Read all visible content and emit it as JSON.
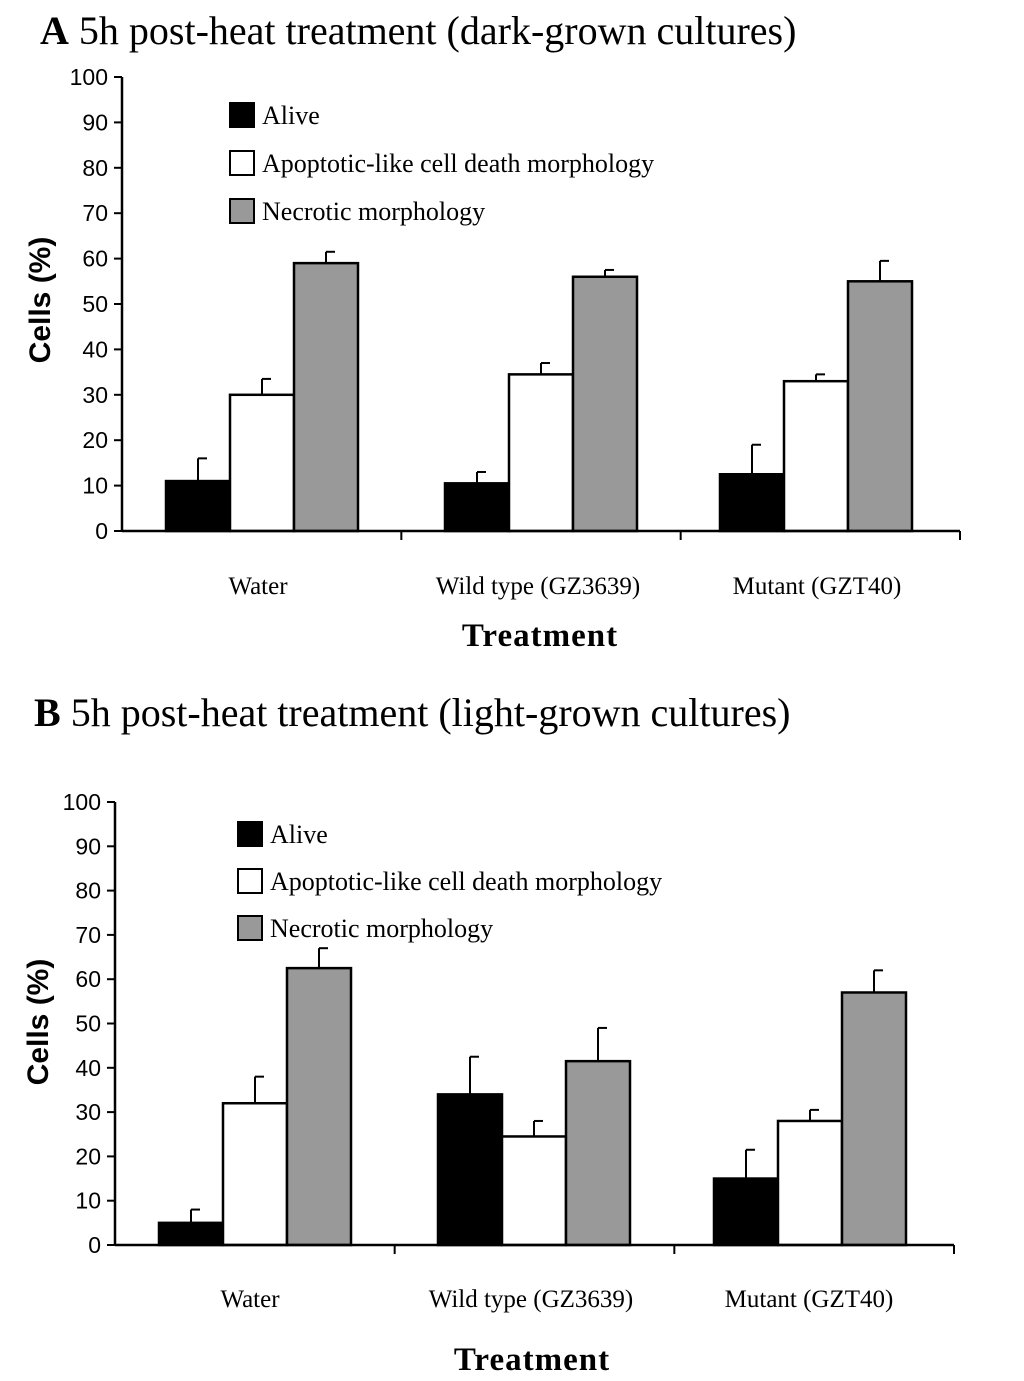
{
  "chart_data": [
    {
      "type": "bar",
      "panel": "A",
      "title": "5h post-heat treatment (dark-grown cultures)",
      "xlabel": "Treatment",
      "ylabel": "Cells (%)",
      "ylim": [
        0,
        100
      ],
      "yticks": [
        "0",
        "10",
        "20",
        "30",
        "40",
        "50",
        "60",
        "70",
        "80",
        "90",
        "100"
      ],
      "categories": [
        "Water",
        "Wild type (GZ3639)",
        "Mutant (GZT40)"
      ],
      "series": [
        {
          "name": "Alive",
          "color": "#000000",
          "values": [
            11,
            10.5,
            12.5
          ],
          "errors": [
            5,
            2.5,
            6.5
          ]
        },
        {
          "name": "Apoptotic-like cell death morphology",
          "color": "#ffffff",
          "values": [
            30,
            34.5,
            33
          ],
          "errors": [
            3.5,
            2.5,
            1.5
          ]
        },
        {
          "name": "Necrotic morphology",
          "color": "#999999",
          "values": [
            59,
            56,
            55
          ],
          "errors": [
            2.5,
            1.5,
            4.5
          ]
        }
      ]
    },
    {
      "type": "bar",
      "panel": "B",
      "title": "5h post-heat treatment (light-grown cultures)",
      "xlabel": "Treatment",
      "ylabel": "Cells (%)",
      "ylim": [
        0,
        100
      ],
      "yticks": [
        "0",
        "10",
        "20",
        "30",
        "40",
        "50",
        "60",
        "70",
        "80",
        "90",
        "100"
      ],
      "categories": [
        "Water",
        "Wild type (GZ3639)",
        "Mutant (GZT40)"
      ],
      "series": [
        {
          "name": "Alive",
          "color": "#000000",
          "values": [
            5,
            34,
            15
          ],
          "errors": [
            3,
            8.5,
            6.5
          ]
        },
        {
          "name": "Apoptotic-like cell death morphology",
          "color": "#ffffff",
          "values": [
            32,
            24.5,
            28
          ],
          "errors": [
            6,
            3.5,
            2.5
          ]
        },
        {
          "name": "Necrotic morphology",
          "color": "#999999",
          "values": [
            62.5,
            41.5,
            57
          ],
          "errors": [
            4.5,
            7.5,
            5
          ]
        }
      ]
    }
  ]
}
